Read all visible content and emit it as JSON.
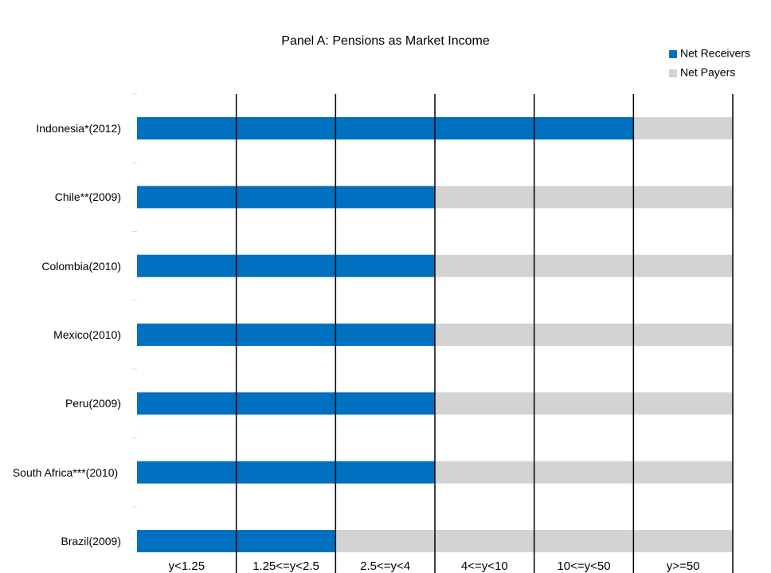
{
  "chart_data": {
    "type": "stacked-hbar",
    "title": "Panel A: Pensions as Market Income",
    "categories": [
      "Indonesia*(2012)",
      "Chile**(2009)",
      "Colombia(2010)",
      "Mexico(2010)",
      "Peru(2009)",
      "South Africa***(2010)",
      "Brazil(2009)"
    ],
    "series": [
      {
        "name": "Net Receivers",
        "color": "#0070c0",
        "values": [
          5,
          3,
          3,
          3,
          3,
          3,
          2
        ]
      },
      {
        "name": "Net Payers",
        "color": "#d3d3d3",
        "values": [
          1,
          3,
          3,
          3,
          3,
          3,
          4
        ]
      }
    ],
    "xlim": [
      0,
      6
    ],
    "xticks": [
      {
        "value": 1,
        "label": "y<1.25"
      },
      {
        "value": 2,
        "label": "1.25<=y<2.5"
      },
      {
        "value": 3,
        "label": "2.5<=y<4"
      },
      {
        "value": 4,
        "label": "4<=y<10"
      },
      {
        "value": 5,
        "label": "10<=y<50"
      },
      {
        "value": 6,
        "label": "y>=50"
      }
    ],
    "grid": true,
    "legend": "top-right"
  }
}
